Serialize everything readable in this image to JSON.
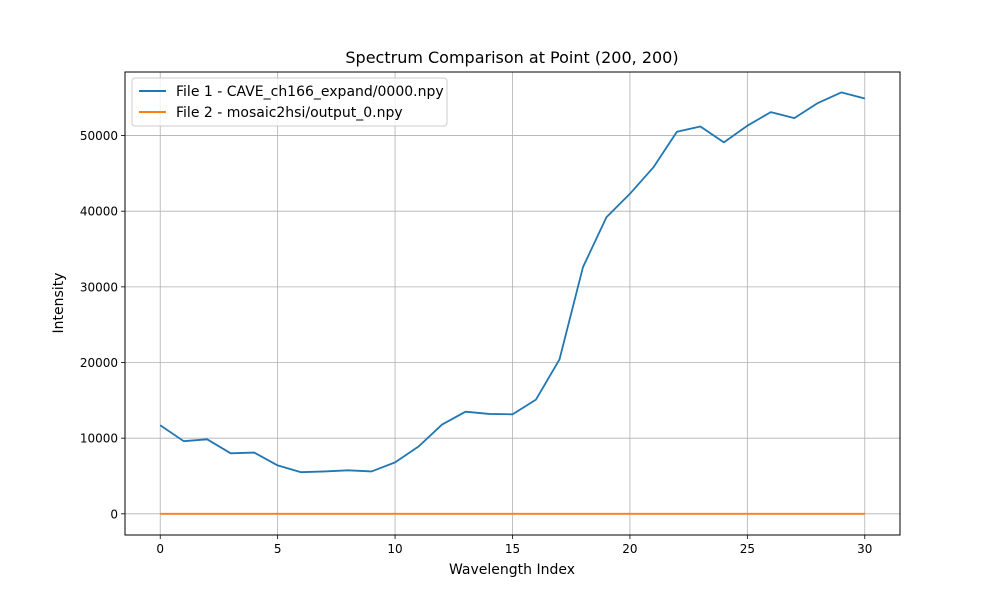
{
  "chart_data": {
    "type": "line",
    "title": "Spectrum Comparison at Point (200, 200)",
    "xlabel": "Wavelength Index",
    "ylabel": "Intensity",
    "xlim": [
      -1.5,
      31.5
    ],
    "ylim": [
      -2800,
      58400
    ],
    "xticks": [
      0,
      5,
      10,
      15,
      20,
      25,
      30
    ],
    "yticks": [
      0,
      10000,
      20000,
      30000,
      40000,
      50000
    ],
    "xtick_labels": [
      "0",
      "5",
      "10",
      "15",
      "20",
      "25",
      "30"
    ],
    "ytick_labels": [
      "0",
      "10000",
      "20000",
      "30000",
      "40000",
      "50000"
    ],
    "grid": true,
    "legend_position": "upper-left",
    "x": [
      0,
      1,
      2,
      3,
      4,
      5,
      6,
      7,
      8,
      9,
      10,
      11,
      12,
      13,
      14,
      15,
      16,
      17,
      18,
      19,
      20,
      21,
      22,
      23,
      24,
      25,
      26,
      27,
      28,
      29,
      30
    ],
    "series": [
      {
        "name": "File 1 - CAVE_ch166_expand/0000.npy",
        "color": "#1f77b4",
        "values": [
          11700,
          9600,
          9850,
          8000,
          8100,
          6400,
          5500,
          5600,
          5750,
          5600,
          6800,
          8900,
          11800,
          13500,
          13200,
          13150,
          15100,
          20400,
          32600,
          39200,
          42300,
          45800,
          50500,
          51200,
          49100,
          51300,
          53100,
          52300,
          54300,
          55700,
          54900
        ]
      },
      {
        "name": "File 2 - mosaic2hsi/output_0.npy",
        "color": "#ff7f0e",
        "values": [
          0,
          0,
          0,
          0,
          0,
          0,
          0,
          0,
          0,
          0,
          0,
          0,
          0,
          0,
          0,
          0,
          0,
          0,
          0,
          0,
          0,
          0,
          0,
          0,
          0,
          0,
          0,
          0,
          0,
          0,
          0
        ]
      }
    ]
  }
}
